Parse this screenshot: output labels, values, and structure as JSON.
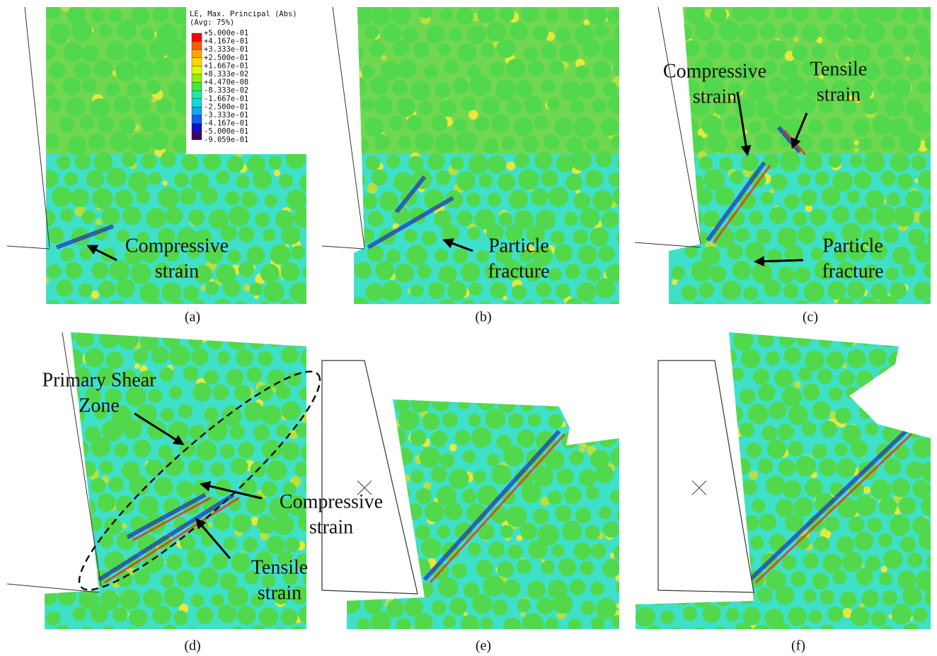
{
  "legend": {
    "title": "LE, Max. Principal (Abs)",
    "subtitle": "(Avg: 75%)",
    "labels": [
      "+5.000e-01",
      "+4.167e-01",
      "+3.333e-01",
      "+2.500e-01",
      "+1.667e-01",
      "+8.333e-02",
      "+4.470e-08",
      "-8.333e-02",
      "-1.667e-01",
      "-2.500e-01",
      "-3.333e-01",
      "-4.167e-01",
      "-5.000e-01",
      "-9.059e-01"
    ]
  },
  "panels": [
    {
      "label": "(a)",
      "annotations": [
        {
          "lines": [
            "Compressive",
            "strain"
          ]
        }
      ]
    },
    {
      "label": "(b)",
      "annotations": [
        {
          "lines": [
            "Particle",
            "fracture"
          ]
        }
      ]
    },
    {
      "label": "(c)",
      "annotations": [
        {
          "lines": [
            "Compressive",
            "strain"
          ]
        },
        {
          "lines": [
            "Tensile",
            "strain"
          ]
        },
        {
          "lines": [
            "Particle",
            "fracture"
          ]
        }
      ]
    },
    {
      "label": "(d)",
      "annotations": [
        {
          "lines": [
            "Primary Shear",
            "Zone"
          ]
        },
        {
          "lines": [
            "Compressive",
            "strain"
          ]
        },
        {
          "lines": [
            "Tensile",
            "strain"
          ]
        }
      ]
    },
    {
      "label": "(e)",
      "annotations": []
    },
    {
      "label": "(f)",
      "annotations": []
    }
  ]
}
